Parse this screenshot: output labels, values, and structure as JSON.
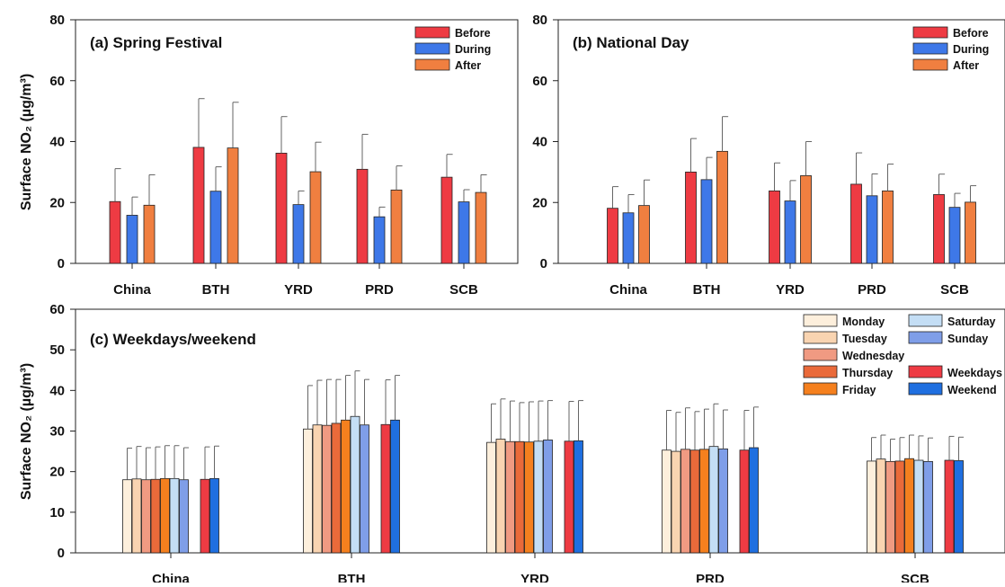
{
  "y_axis_label": "Surface NO₂ (µg/m³)",
  "colors": {
    "Before": "#ee3b43",
    "During": "#3e78e8",
    "After": "#f07f40",
    "Monday": "#fdefdc",
    "Tuesday": "#f9d4b1",
    "Wednesday": "#f09a82",
    "Thursday": "#ea6a3a",
    "Friday": "#f5801e",
    "Saturday": "#c4def5",
    "Sunday": "#7f9ee8",
    "Weekdays": "#ee3b43",
    "Weekend": "#1f6fe0"
  },
  "chart_data": [
    {
      "type": "bar",
      "title": "(a) Spring Festival",
      "categories": [
        "China",
        "BTH",
        "YRD",
        "PRD",
        "SCB"
      ],
      "ylim": [
        0,
        80
      ],
      "yticks": [
        0,
        20,
        40,
        60,
        80
      ],
      "legend": "top-right",
      "series": [
        {
          "name": "Before",
          "values": [
            20.3,
            38.1,
            36.2,
            30.9,
            28.3
          ],
          "err": [
            10.8,
            16.0,
            12.0,
            11.5,
            7.5
          ]
        },
        {
          "name": "During",
          "values": [
            15.8,
            23.7,
            19.3,
            15.3,
            20.2
          ],
          "err": [
            6.0,
            8.0,
            4.5,
            3.2,
            4.0
          ]
        },
        {
          "name": "After",
          "values": [
            19.1,
            37.9,
            30.1,
            24.1,
            23.3
          ],
          "err": [
            10.0,
            15.0,
            9.7,
            7.9,
            5.8
          ]
        }
      ]
    },
    {
      "type": "bar",
      "title": "(b) National Day",
      "categories": [
        "China",
        "BTH",
        "YRD",
        "PRD",
        "SCB"
      ],
      "ylim": [
        0,
        80
      ],
      "yticks": [
        0,
        20,
        40,
        60,
        80
      ],
      "legend": "top-right",
      "series": [
        {
          "name": "Before",
          "values": [
            18.1,
            30.0,
            23.8,
            26.0,
            22.6
          ],
          "err": [
            7.1,
            11.0,
            9.2,
            10.3,
            6.7
          ]
        },
        {
          "name": "During",
          "values": [
            16.6,
            27.5,
            20.5,
            22.2,
            18.4
          ],
          "err": [
            6.0,
            7.3,
            6.7,
            7.2,
            4.6
          ]
        },
        {
          "name": "After",
          "values": [
            19.0,
            36.8,
            28.8,
            23.8,
            20.1
          ],
          "err": [
            8.4,
            11.4,
            11.2,
            8.8,
            5.4
          ]
        }
      ]
    },
    {
      "type": "bar",
      "title": "(c) Weekdays/weekend",
      "categories": [
        "China",
        "BTH",
        "YRD",
        "PRD",
        "SCB"
      ],
      "ylim": [
        0,
        60
      ],
      "yticks": [
        0,
        10,
        20,
        30,
        40,
        50,
        60
      ],
      "legend": "top-right",
      "series": [
        {
          "name": "Monday",
          "values": [
            18.0,
            30.5,
            27.2,
            25.3,
            22.6
          ],
          "err": [
            7.8,
            10.7,
            9.5,
            9.8,
            5.8
          ]
        },
        {
          "name": "Tuesday",
          "values": [
            18.2,
            31.5,
            28.0,
            25.0,
            23.1
          ],
          "err": [
            8.0,
            11.0,
            9.9,
            9.6,
            5.9
          ]
        },
        {
          "name": "Wednesday",
          "values": [
            18.0,
            31.4,
            27.4,
            25.5,
            22.5
          ],
          "err": [
            7.9,
            11.3,
            10.0,
            10.2,
            5.5
          ]
        },
        {
          "name": "Thursday",
          "values": [
            18.1,
            31.9,
            27.4,
            25.3,
            22.6
          ],
          "err": [
            8.0,
            10.8,
            9.6,
            9.5,
            5.8
          ]
        },
        {
          "name": "Friday",
          "values": [
            18.3,
            32.7,
            27.3,
            25.5,
            23.2
          ],
          "err": [
            8.1,
            11.0,
            9.9,
            9.9,
            5.8
          ]
        },
        {
          "name": "Saturday",
          "values": [
            18.3,
            33.6,
            27.5,
            26.2,
            22.8
          ],
          "err": [
            8.1,
            11.2,
            9.9,
            10.5,
            6.0
          ]
        },
        {
          "name": "Sunday",
          "values": [
            18.0,
            31.5,
            27.8,
            25.6,
            22.5
          ],
          "err": [
            7.9,
            11.2,
            9.7,
            9.6,
            5.8
          ]
        },
        {
          "name": "Weekdays",
          "values": [
            18.1,
            31.6,
            27.5,
            25.3,
            22.8
          ],
          "err": [
            8.0,
            11.0,
            9.8,
            9.8,
            5.9
          ]
        },
        {
          "name": "Weekend",
          "values": [
            18.3,
            32.7,
            27.6,
            25.9,
            22.7
          ],
          "err": [
            8.0,
            11.0,
            9.9,
            10.0,
            5.8
          ]
        }
      ]
    }
  ]
}
